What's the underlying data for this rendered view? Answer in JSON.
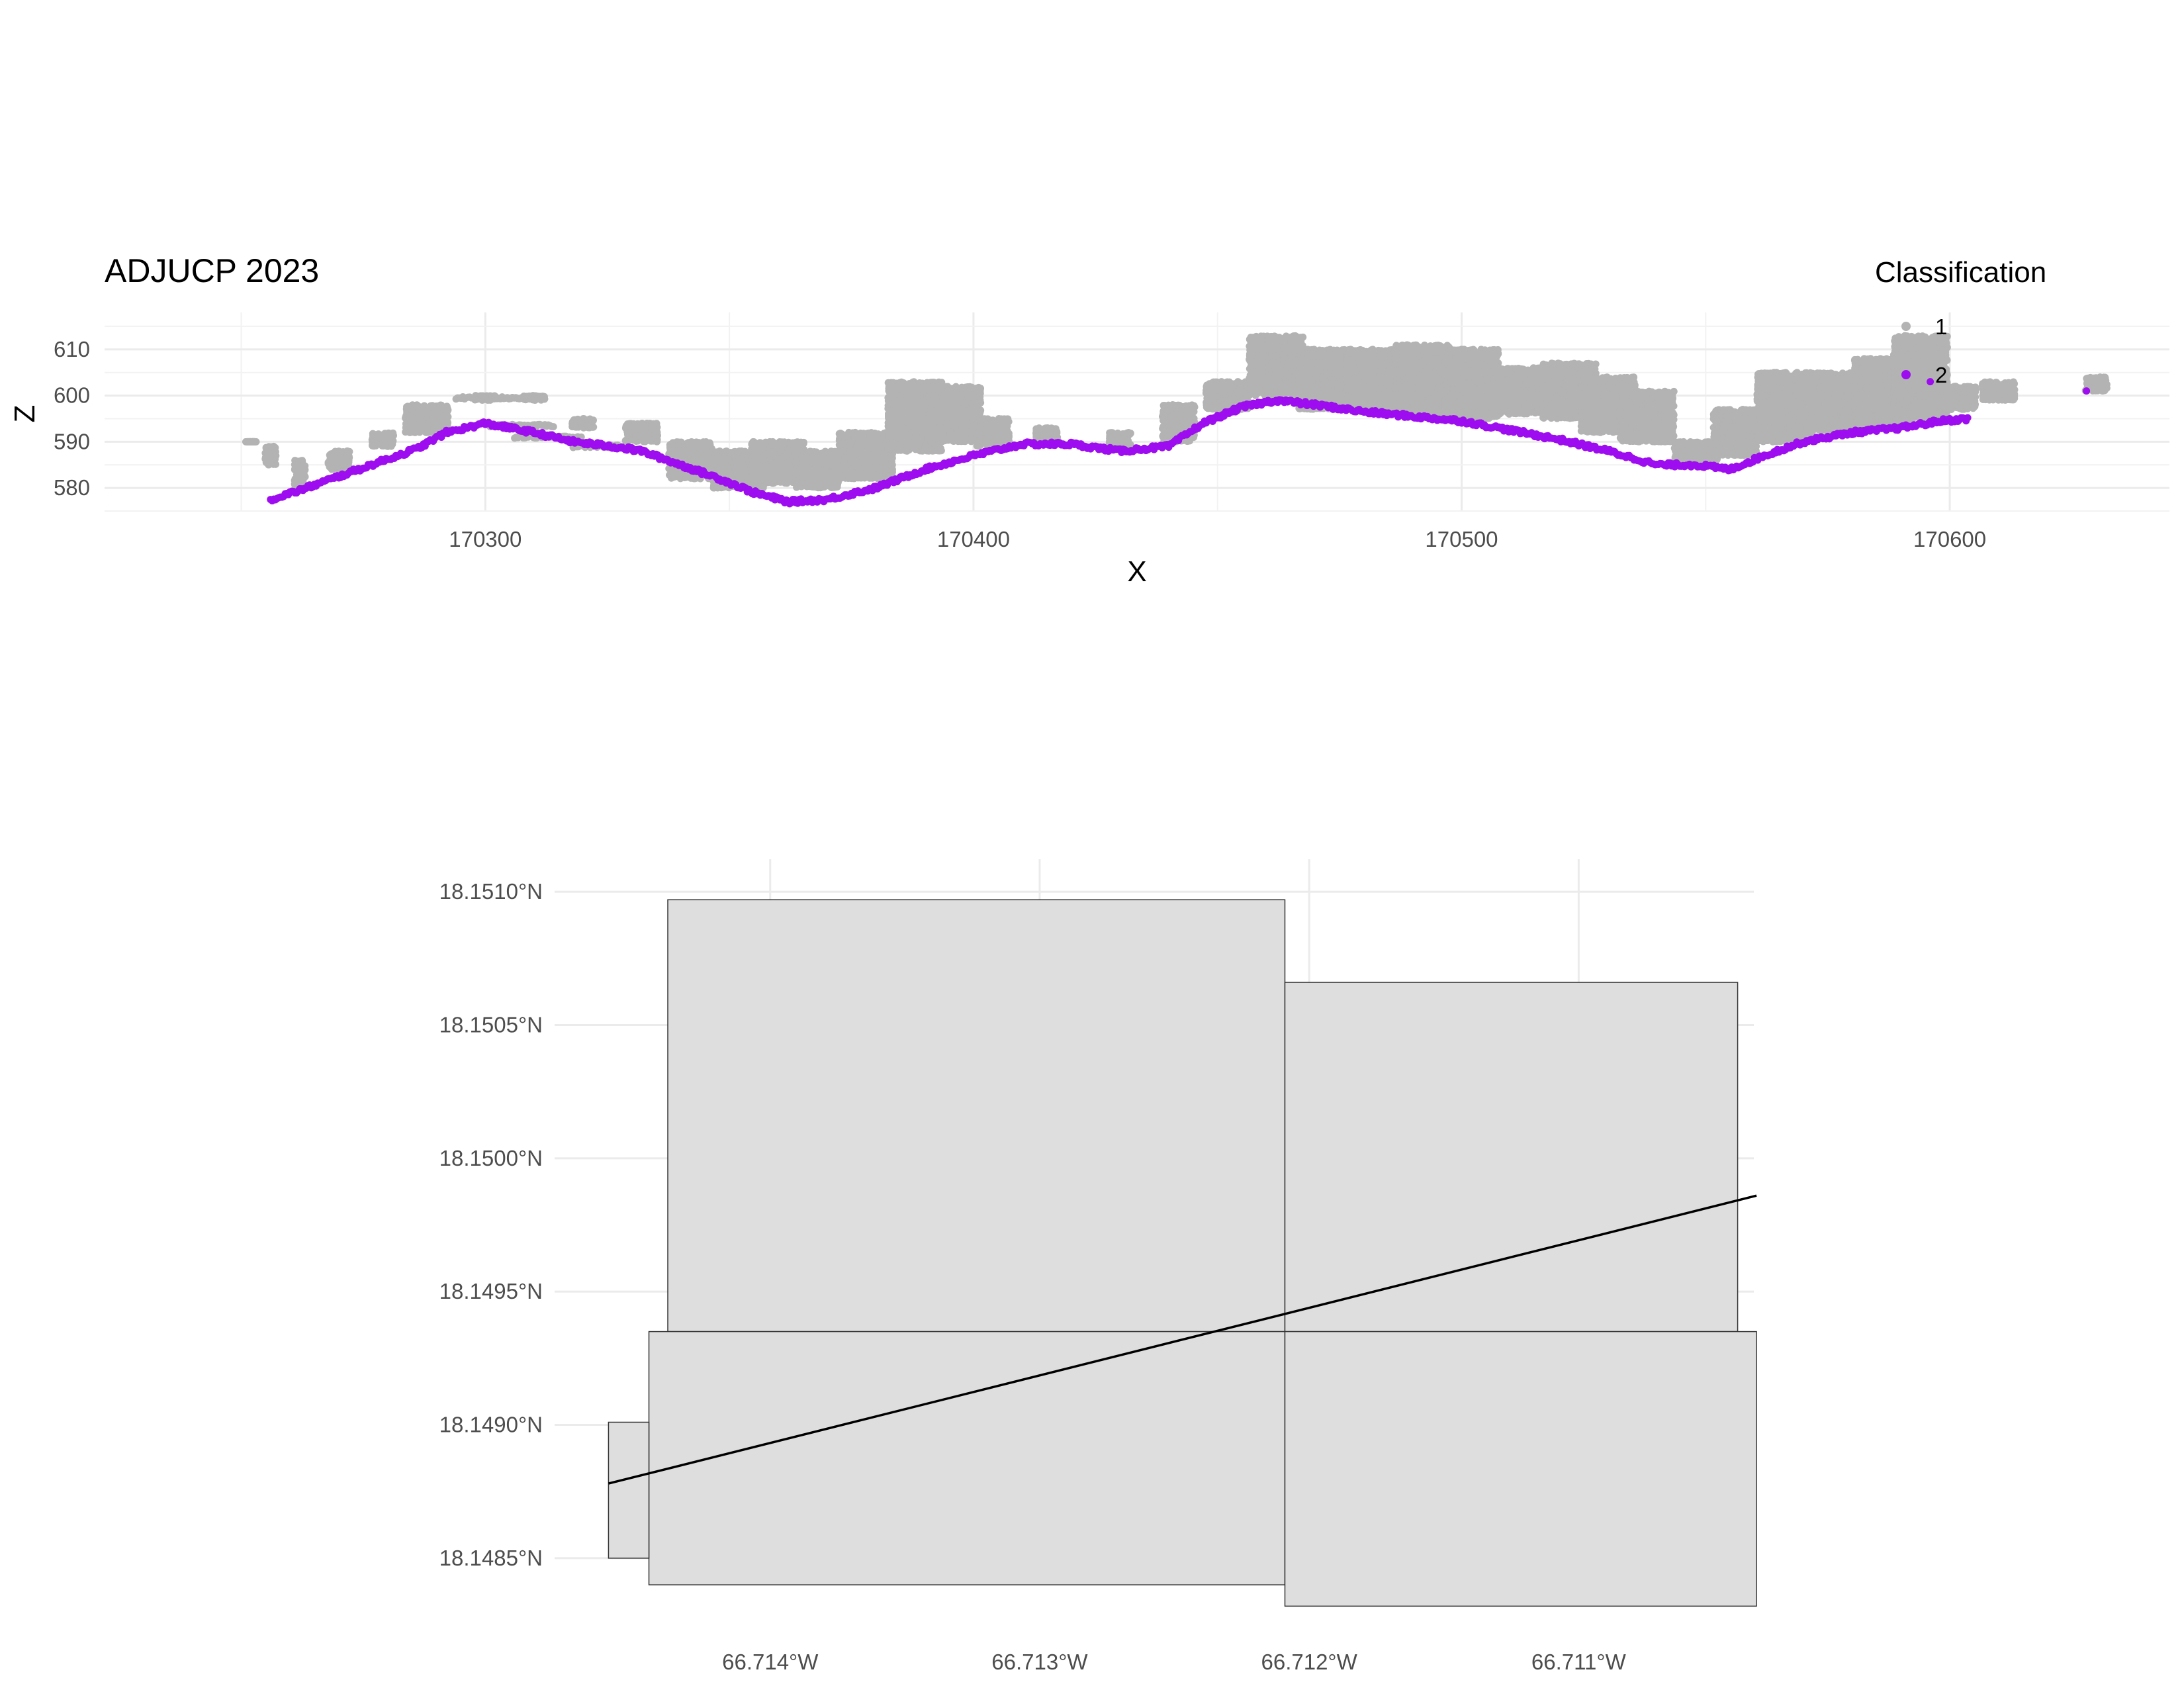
{
  "chart_data": [
    {
      "type": "scatter",
      "title": "ADJUCP 2023",
      "xlabel": "X",
      "ylabel": "Z",
      "xlim": [
        170222,
        170645
      ],
      "ylim": [
        575,
        618
      ],
      "x_ticks": [
        170300,
        170400,
        170500,
        170600
      ],
      "x_tick_labels": [
        "170300",
        "170400",
        "170500",
        "170600"
      ],
      "y_ticks": [
        580,
        590,
        600,
        610
      ],
      "y_tick_labels": [
        "580",
        "590",
        "600",
        "610"
      ],
      "grid": true,
      "legend": {
        "title": "Classification",
        "position": "top-right",
        "entries": [
          {
            "label": "1",
            "color": "#b3b3b3"
          },
          {
            "label": "2",
            "color": "#9d0df0"
          }
        ]
      },
      "colors": {
        "class_1": "#b3b3b3",
        "class_2": "#9d0df0"
      },
      "series": [
        {
          "name": "2",
          "color": "#9d0df0",
          "profile": [
            [
              170256,
              577.5
            ],
            [
              170262,
              579.5
            ],
            [
              170270,
              582.5
            ],
            [
              170278,
              585.5
            ],
            [
              170286,
              588.5
            ],
            [
              170292,
              592
            ],
            [
              170300,
              594
            ],
            [
              170310,
              592
            ],
            [
              170318,
              590
            ],
            [
              170326,
              589
            ],
            [
              170332,
              588
            ],
            [
              170340,
              585
            ],
            [
              170348,
              582
            ],
            [
              170355,
              579
            ],
            [
              170362,
              577
            ],
            [
              170370,
              577.5
            ],
            [
              170380,
              580
            ],
            [
              170390,
              584
            ],
            [
              170400,
              587
            ],
            [
              170410,
              589.5
            ],
            [
              170420,
              589.5
            ],
            [
              170430,
              588
            ],
            [
              170440,
              589
            ],
            [
              170447,
              594
            ],
            [
              170455,
              597.5
            ],
            [
              170462,
              599
            ],
            [
              170470,
              598
            ],
            [
              170480,
              596.5
            ],
            [
              170490,
              595.5
            ],
            [
              170500,
              594.5
            ],
            [
              170510,
              592.5
            ],
            [
              170520,
              590.5
            ],
            [
              170530,
              588
            ],
            [
              170540,
              585
            ],
            [
              170548,
              585
            ],
            [
              170555,
              584
            ],
            [
              170562,
              587
            ],
            [
              170570,
              590
            ],
            [
              170580,
              592
            ],
            [
              170590,
              593
            ],
            [
              170598,
              594.5
            ],
            [
              170604,
              595
            ]
          ],
          "extra_points": [
            [
              170628,
              601
            ],
            [
              170596,
              603
            ],
            [
              170595,
              593.5
            ]
          ]
        },
        {
          "name": "1",
          "color": "#b3b3b3",
          "canopy": [
            [
              170252,
              590,
              590,
              1
            ],
            [
              170256,
              585,
              589,
              1
            ],
            [
              170262,
              580,
              586,
              1
            ],
            [
              170270,
              584,
              588,
              2
            ],
            [
              170279,
              589,
              592,
              2
            ],
            [
              170288,
              592,
              598,
              4
            ],
            [
              170300,
              599,
              600,
              2
            ],
            [
              170310,
              599,
              600,
              2
            ],
            [
              170320,
              593,
              595,
              2
            ],
            [
              170332,
              590,
              594,
              3
            ],
            [
              170342,
              582,
              590,
              4
            ],
            [
              170352,
              580,
              588,
              5
            ],
            [
              170360,
              581,
              590,
              5
            ],
            [
              170368,
              580,
              588,
              4
            ],
            [
              170378,
              582,
              592,
              5
            ],
            [
              170388,
              588,
              603,
              5
            ],
            [
              170396,
              590,
              602,
              5
            ],
            [
              170404,
              589,
              595,
              3
            ],
            [
              170415,
              590,
              593,
              2
            ],
            [
              170430,
              589,
              592,
              2
            ],
            [
              170442,
              590,
              598,
              3
            ],
            [
              170452,
              597,
              603,
              4
            ],
            [
              170462,
              600,
              613,
              5
            ],
            [
              170472,
              597,
              610,
              5
            ],
            [
              170482,
              597,
              610,
              5
            ],
            [
              170492,
              596,
              611,
              5
            ],
            [
              170502,
              595,
              610,
              5
            ],
            [
              170512,
              596,
              606,
              5
            ],
            [
              170522,
              595,
              607,
              5
            ],
            [
              170530,
              592,
              604,
              5
            ],
            [
              170538,
              590,
              601,
              5
            ],
            [
              170548,
              586,
              590,
              4
            ],
            [
              170556,
              587,
              597,
              4
            ],
            [
              170566,
              590,
              605,
              5
            ],
            [
              170576,
              592,
              605,
              5
            ],
            [
              170586,
              593,
              608,
              5
            ],
            [
              170594,
              595,
              613,
              5
            ],
            [
              170602,
              597,
              602,
              3
            ],
            [
              170610,
              599,
              603,
              3
            ],
            [
              170630,
              601,
              604,
              2
            ]
          ],
          "stripes": [
            [
              170294,
              170312,
              599.5
            ],
            [
              170301,
              170314,
              593.5
            ],
            [
              170306,
              170320,
              591
            ],
            [
              170318,
              170328,
              589
            ]
          ]
        }
      ]
    },
    {
      "type": "map",
      "x_ticks": [
        -66.714,
        -66.713,
        -66.712,
        -66.711
      ],
      "x_tick_labels": [
        "66.714°W",
        "66.713°W",
        "66.712°W",
        "66.711°W"
      ],
      "y_ticks": [
        18.1485,
        18.149,
        18.1495,
        18.15,
        18.1505,
        18.151
      ],
      "y_tick_labels": [
        "18.1485°N",
        "18.1490°N",
        "18.1495°N",
        "18.1500°N",
        "18.1505°N",
        "18.1510°N"
      ],
      "xlim": [
        -66.7148,
        -66.71035
      ],
      "ylim": [
        18.14845,
        18.15105
      ],
      "grid": true,
      "tiles": [
        {
          "lon": [
            -66.71438,
            -66.71209
          ],
          "lat": [
            18.14935,
            18.15097
          ]
        },
        {
          "lon": [
            -66.71209,
            -66.71041
          ],
          "lat": [
            18.14935,
            18.15066
          ]
        },
        {
          "lon": [
            -66.71445,
            -66.71209
          ],
          "lat": [
            18.1484,
            18.14935
          ]
        },
        {
          "lon": [
            -66.71209,
            -66.71034
          ],
          "lat": [
            18.14832,
            18.14935
          ]
        },
        {
          "lon": [
            -66.7146,
            -66.71445
          ],
          "lat": [
            18.1485,
            18.14901
          ]
        }
      ],
      "transect": {
        "lon": [
          -66.7146,
          -66.71034
        ],
        "lat": [
          18.14878,
          18.14986
        ]
      }
    }
  ]
}
